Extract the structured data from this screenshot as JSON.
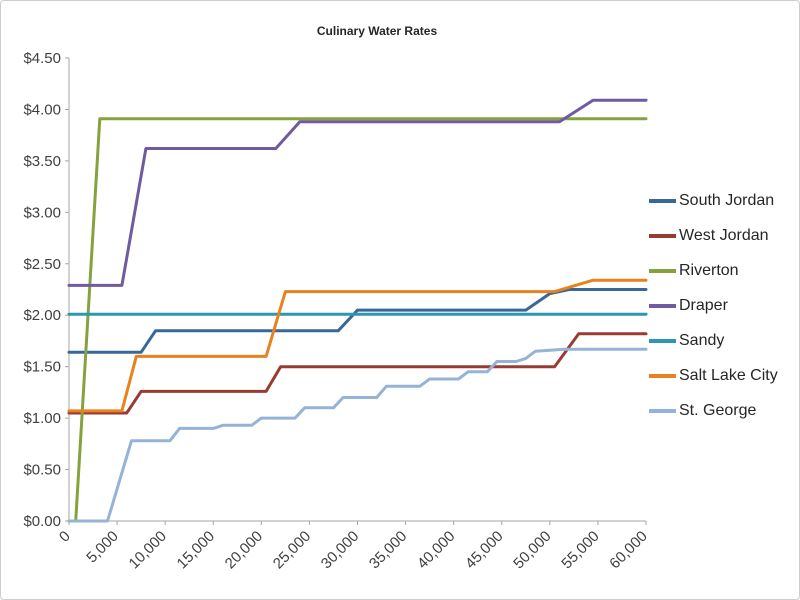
{
  "chart_data": {
    "type": "line",
    "title": "Culinary Water Rates",
    "xlabel": "",
    "ylabel": "",
    "grid": false,
    "legend_position": "right",
    "colors": {
      "axis": "#a6a6a6",
      "text": "#3f3f3f",
      "title": "#262626",
      "background": "#ffffff"
    },
    "x_axis": {
      "min": 0,
      "max": 60000,
      "tick_interval": 5000,
      "tick_labels": [
        "0",
        "5,000",
        "10,000",
        "15,000",
        "20,000",
        "25,000",
        "30,000",
        "35,000",
        "40,000",
        "45,000",
        "50,000",
        "55,000",
        "60,000"
      ]
    },
    "y_axis": {
      "min": 0,
      "max": 4.5,
      "tick_interval": 0.5,
      "tick_labels": [
        "$0.00",
        "$0.50",
        "$1.00",
        "$1.50",
        "$2.00",
        "$2.50",
        "$3.00",
        "$3.50",
        "$4.00",
        "$4.50"
      ]
    },
    "series": [
      {
        "name": "South Jordan",
        "color": "#38689a",
        "points": [
          [
            0,
            1.64
          ],
          [
            7500,
            1.64
          ],
          [
            9000,
            1.85
          ],
          [
            28000,
            1.85
          ],
          [
            30000,
            2.05
          ],
          [
            47500,
            2.05
          ],
          [
            50000,
            2.21
          ],
          [
            52000,
            2.25
          ],
          [
            60000,
            2.25
          ]
        ]
      },
      {
        "name": "West Jordan",
        "color": "#9a3b32",
        "points": [
          [
            0,
            1.05
          ],
          [
            6000,
            1.05
          ],
          [
            7500,
            1.26
          ],
          [
            20500,
            1.26
          ],
          [
            22000,
            1.5
          ],
          [
            50500,
            1.5
          ],
          [
            53000,
            1.82
          ],
          [
            60000,
            1.82
          ]
        ]
      },
      {
        "name": "Riverton",
        "color": "#86a23f",
        "points": [
          [
            0,
            0.0
          ],
          [
            700,
            0.0
          ],
          [
            3200,
            3.91
          ],
          [
            60000,
            3.91
          ]
        ]
      },
      {
        "name": "Draper",
        "color": "#705aa0",
        "points": [
          [
            0,
            2.29
          ],
          [
            5500,
            2.29
          ],
          [
            8000,
            3.62
          ],
          [
            21500,
            3.62
          ],
          [
            24000,
            3.88
          ],
          [
            51000,
            3.88
          ],
          [
            54500,
            4.09
          ],
          [
            60000,
            4.09
          ]
        ]
      },
      {
        "name": "Sandy",
        "color": "#2c97ae",
        "points": [
          [
            0,
            2.01
          ],
          [
            60000,
            2.01
          ]
        ]
      },
      {
        "name": "Salt Lake City",
        "color": "#e8821e",
        "points": [
          [
            0,
            1.07
          ],
          [
            5500,
            1.07
          ],
          [
            7000,
            1.6
          ],
          [
            20500,
            1.6
          ],
          [
            22500,
            2.23
          ],
          [
            50500,
            2.23
          ],
          [
            54500,
            2.34
          ],
          [
            60000,
            2.34
          ]
        ]
      },
      {
        "name": "St. George",
        "color": "#95b3d7",
        "points": [
          [
            0,
            0.0
          ],
          [
            4000,
            0.0
          ],
          [
            6500,
            0.78
          ],
          [
            10500,
            0.78
          ],
          [
            11500,
            0.9
          ],
          [
            15000,
            0.9
          ],
          [
            16000,
            0.93
          ],
          [
            19000,
            0.93
          ],
          [
            20000,
            1.0
          ],
          [
            23500,
            1.0
          ],
          [
            24500,
            1.1
          ],
          [
            27500,
            1.1
          ],
          [
            28500,
            1.2
          ],
          [
            32000,
            1.2
          ],
          [
            33000,
            1.31
          ],
          [
            36500,
            1.31
          ],
          [
            37500,
            1.38
          ],
          [
            40500,
            1.38
          ],
          [
            41500,
            1.45
          ],
          [
            43500,
            1.45
          ],
          [
            44500,
            1.55
          ],
          [
            46500,
            1.55
          ],
          [
            47500,
            1.58
          ],
          [
            48500,
            1.65
          ],
          [
            51500,
            1.67
          ],
          [
            60000,
            1.67
          ]
        ]
      }
    ]
  }
}
